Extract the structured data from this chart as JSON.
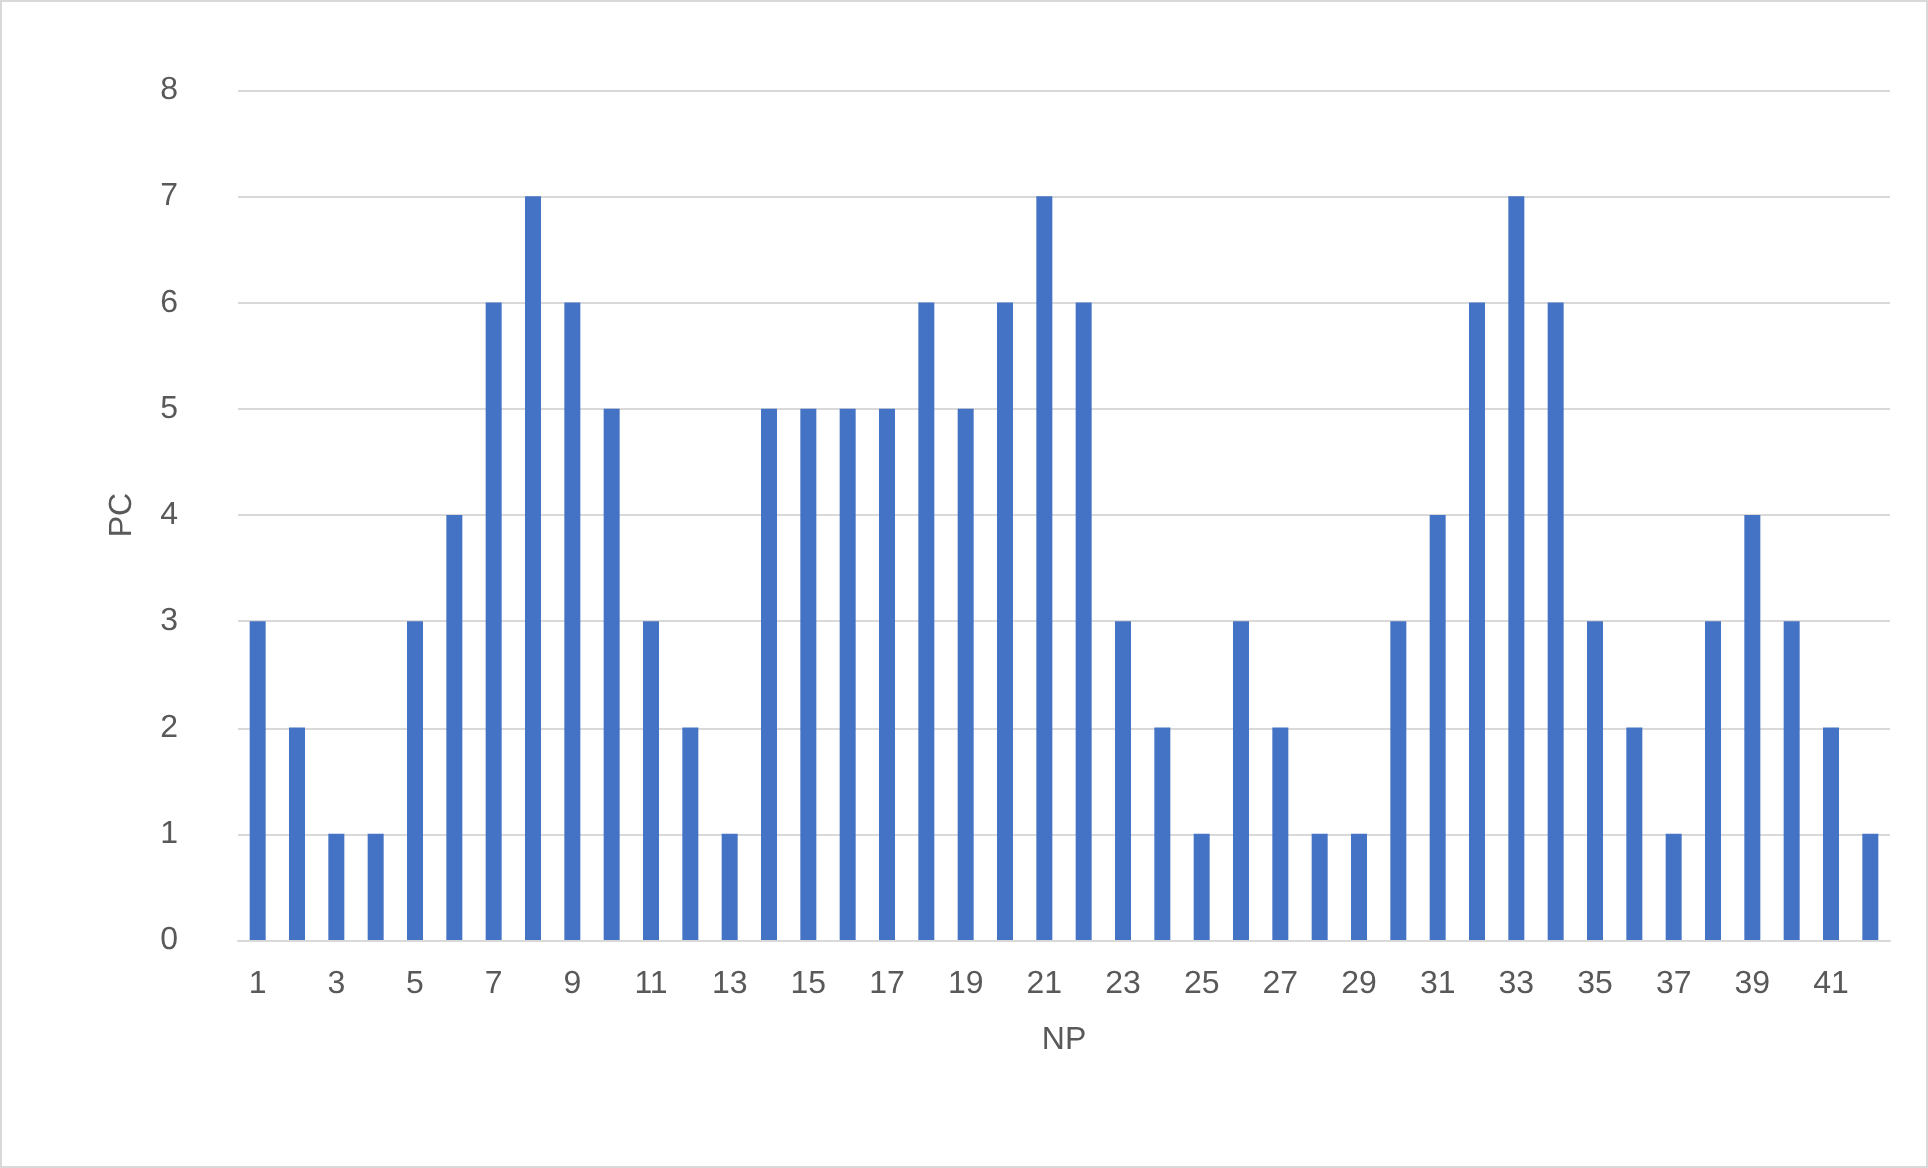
{
  "chart_data": {
    "type": "bar",
    "xlabel": "NP",
    "ylabel": "PC",
    "x": [
      1,
      2,
      3,
      4,
      5,
      6,
      7,
      8,
      9,
      10,
      11,
      12,
      13,
      14,
      15,
      16,
      17,
      18,
      19,
      20,
      21,
      22,
      23,
      24,
      25,
      26,
      27,
      28,
      29,
      30,
      31,
      32,
      33,
      34,
      35,
      36,
      37,
      38,
      39,
      40,
      41,
      42
    ],
    "values": [
      3,
      2,
      1,
      1,
      3,
      4,
      6,
      7,
      6,
      5,
      3,
      2,
      1,
      5,
      5,
      5,
      5,
      6,
      5,
      6,
      7,
      6,
      3,
      2,
      1,
      3,
      2,
      1,
      1,
      3,
      4,
      6,
      7,
      6,
      3,
      2,
      1,
      3,
      4,
      3,
      2,
      1
    ],
    "color": "#4472c4",
    "xlim": [
      0.5,
      42.5
    ],
    "xticks": [
      1,
      3,
      5,
      7,
      9,
      11,
      13,
      15,
      17,
      19,
      21,
      23,
      25,
      27,
      29,
      31,
      33,
      35,
      37,
      39,
      41
    ],
    "ylim": [
      0,
      8
    ],
    "yticks": [
      0,
      1,
      2,
      3,
      4,
      5,
      6,
      7,
      8
    ],
    "grid": "y"
  }
}
